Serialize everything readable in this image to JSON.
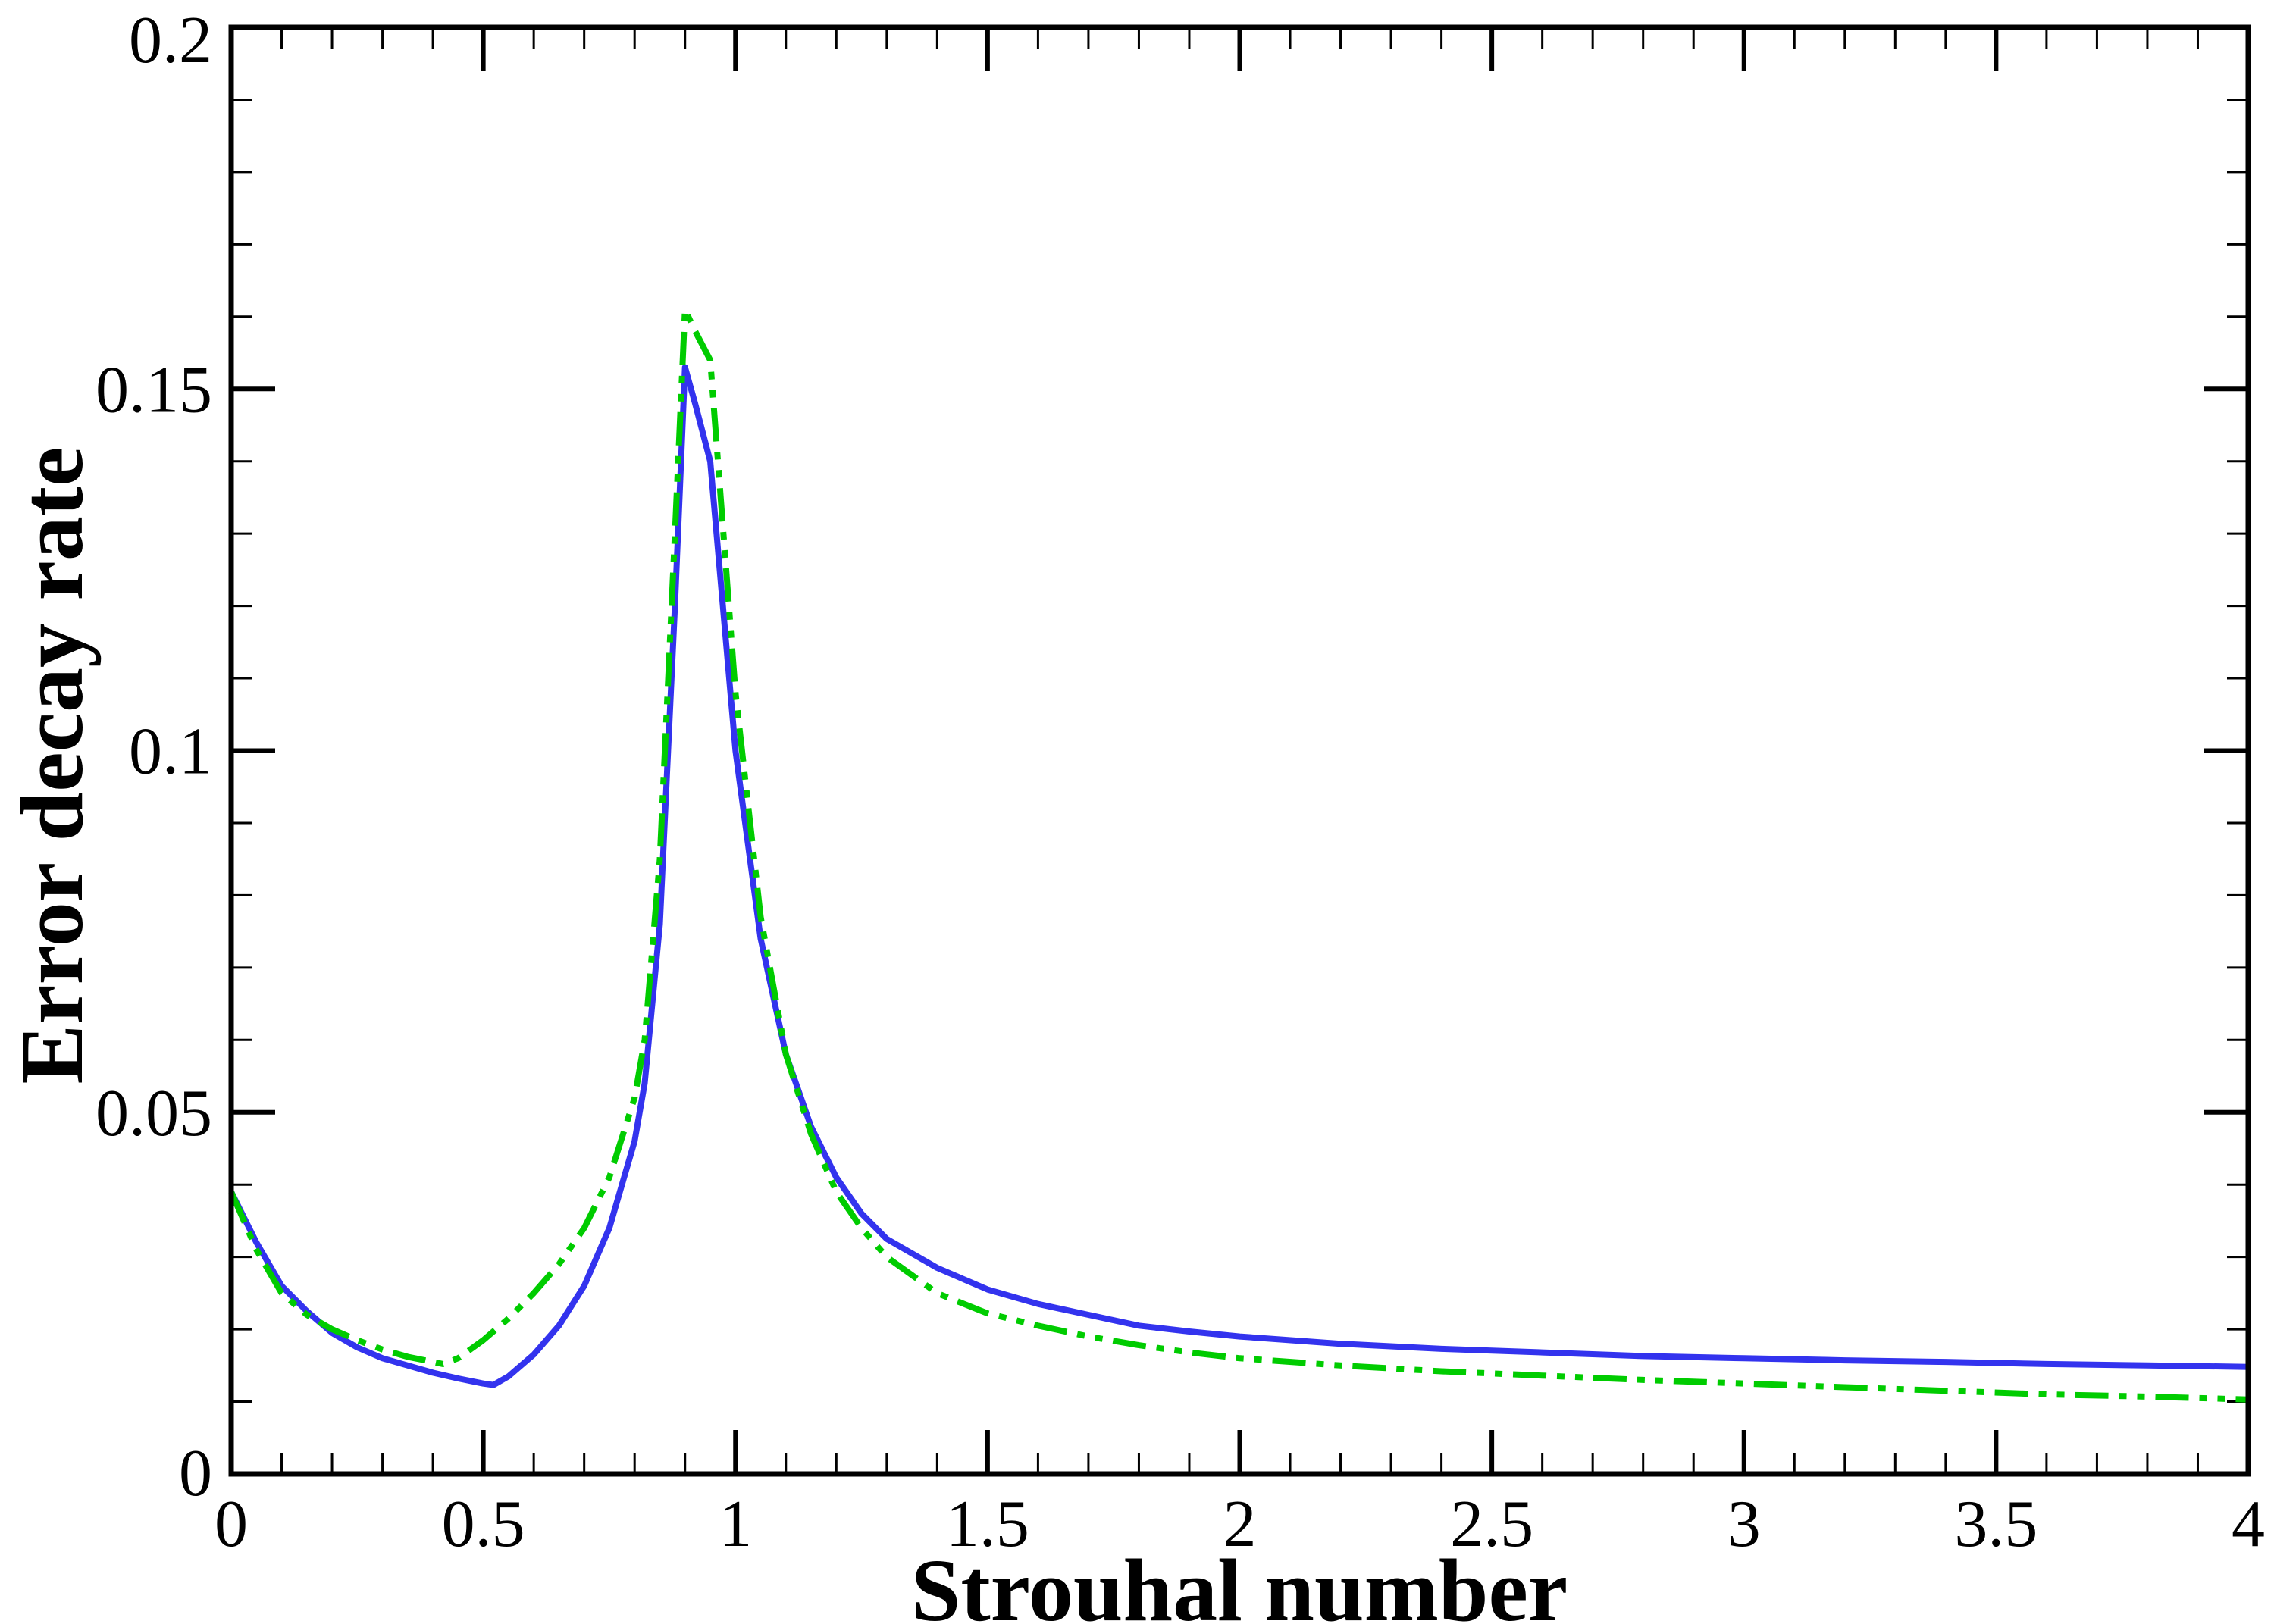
{
  "chart_data": {
    "type": "line",
    "title": "",
    "xlabel": "Strouhal number",
    "ylabel": "Error decay rate",
    "xlim": [
      0,
      4
    ],
    "ylim": [
      0,
      0.2
    ],
    "xticks": [
      0,
      0.5,
      1,
      1.5,
      2,
      2.5,
      3,
      3.5,
      4
    ],
    "xtick_labels": [
      "0",
      "0.5",
      "1",
      "1.5",
      "2",
      "2.5",
      "3",
      "3.5",
      "4"
    ],
    "yticks": [
      0,
      0.05,
      0.1,
      0.15,
      0.2
    ],
    "ytick_labels": [
      "0",
      "0.05",
      "0.1",
      "0.15",
      "0.2"
    ],
    "x_minor_step": 0.1,
    "y_minor_step": 0.01,
    "grid": false,
    "legend": "none",
    "series": [
      {
        "color": "#3333ee",
        "style": "solid",
        "x": [
          0.0,
          0.05,
          0.1,
          0.15,
          0.2,
          0.25,
          0.3,
          0.35,
          0.4,
          0.45,
          0.5,
          0.52,
          0.55,
          0.6,
          0.65,
          0.7,
          0.75,
          0.8,
          0.82,
          0.85,
          0.88,
          0.9,
          0.92,
          0.95,
          1.0,
          1.05,
          1.1,
          1.15,
          1.2,
          1.25,
          1.3,
          1.4,
          1.5,
          1.6,
          1.7,
          1.8,
          1.9,
          2.0,
          2.2,
          2.4,
          2.6,
          2.8,
          3.0,
          3.2,
          3.4,
          3.6,
          3.8,
          4.0
        ],
        "y": [
          0.039,
          0.032,
          0.026,
          0.0225,
          0.0195,
          0.0175,
          0.016,
          0.015,
          0.014,
          0.0132,
          0.0125,
          0.0123,
          0.0135,
          0.0165,
          0.0205,
          0.026,
          0.034,
          0.046,
          0.054,
          0.076,
          0.12,
          0.153,
          0.148,
          0.14,
          0.1,
          0.074,
          0.058,
          0.048,
          0.041,
          0.036,
          0.0325,
          0.0285,
          0.0255,
          0.0235,
          0.022,
          0.0205,
          0.0197,
          0.019,
          0.018,
          0.0173,
          0.0168,
          0.0163,
          0.016,
          0.0157,
          0.0155,
          0.0152,
          0.015,
          0.0148
        ]
      },
      {
        "color": "#00cc00",
        "style": "dash-dot-dot",
        "x": [
          0.0,
          0.05,
          0.1,
          0.15,
          0.2,
          0.25,
          0.3,
          0.35,
          0.4,
          0.42,
          0.45,
          0.5,
          0.55,
          0.6,
          0.65,
          0.7,
          0.75,
          0.8,
          0.82,
          0.85,
          0.88,
          0.9,
          0.92,
          0.95,
          1.0,
          1.05,
          1.1,
          1.15,
          1.2,
          1.25,
          1.3,
          1.4,
          1.5,
          1.6,
          1.7,
          1.8,
          1.9,
          2.0,
          2.2,
          2.4,
          2.6,
          2.8,
          3.0,
          3.2,
          3.4,
          3.6,
          3.8,
          4.0
        ],
        "y": [
          0.039,
          0.031,
          0.025,
          0.022,
          0.02,
          0.0185,
          0.0172,
          0.0162,
          0.0155,
          0.0152,
          0.016,
          0.0185,
          0.0215,
          0.025,
          0.029,
          0.034,
          0.041,
          0.052,
          0.06,
          0.085,
          0.13,
          0.161,
          0.158,
          0.154,
          0.108,
          0.077,
          0.058,
          0.047,
          0.039,
          0.034,
          0.03,
          0.025,
          0.0222,
          0.0205,
          0.019,
          0.0178,
          0.0168,
          0.016,
          0.015,
          0.0142,
          0.0136,
          0.013,
          0.0125,
          0.012,
          0.0115,
          0.011,
          0.0107,
          0.0103
        ]
      }
    ]
  }
}
